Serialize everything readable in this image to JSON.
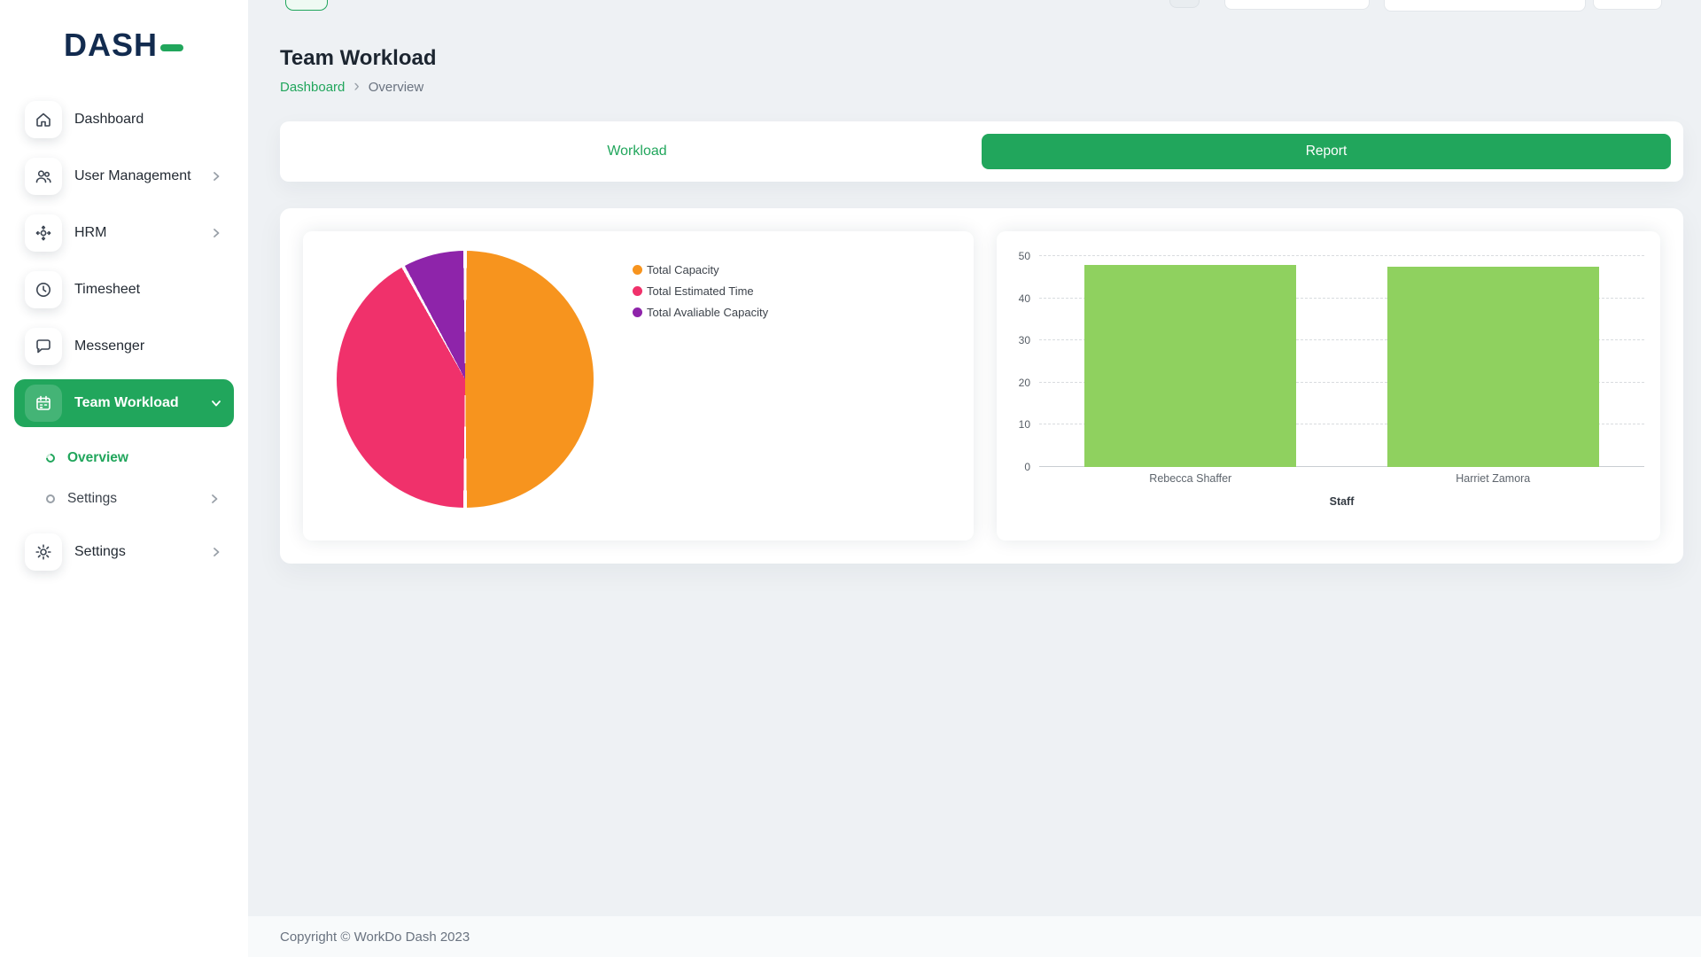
{
  "colors": {
    "primary_green": "#21A65C",
    "logo_navy": "#122B4F",
    "pie_orange": "#F7941E",
    "pie_pink": "#F0316B",
    "pie_purple": "#8E24AA",
    "bar_green": "#8FD15F"
  },
  "sidebar": {
    "logo": "DASH",
    "items": [
      {
        "label": "Dashboard"
      },
      {
        "label": "User Management"
      },
      {
        "label": "HRM"
      },
      {
        "label": "Timesheet"
      },
      {
        "label": "Messenger"
      },
      {
        "label": "Team Workload"
      },
      {
        "label": "Settings"
      }
    ],
    "team_workload_subitems": [
      {
        "label": "Overview"
      },
      {
        "label": "Settings"
      }
    ]
  },
  "header": {
    "title": "Team Workload",
    "breadcrumb_root": "Dashboard",
    "breadcrumb_current": "Overview"
  },
  "tabs": {
    "workload_label": "Workload",
    "report_label": "Report"
  },
  "chart_data": [
    {
      "type": "pie",
      "labels": [
        "Total Capacity",
        "Total Estimated Time",
        "Total Avaliable Capacity"
      ],
      "values_percent": [
        50,
        42,
        8
      ],
      "colors": [
        "#F7941E",
        "#F0316B",
        "#8E24AA"
      ],
      "legend_position": "right"
    },
    {
      "type": "bar",
      "categories": [
        "Rebecca Shaffer",
        "Harriet Zamora"
      ],
      "values": [
        48,
        47.5
      ],
      "xlabel": "Staff",
      "ylim": [
        0,
        50
      ],
      "yticks": [
        0,
        10,
        20,
        30,
        40,
        50
      ],
      "bar_color": "#8FD15F",
      "grid": "dashed-horizontal",
      "legend_position": "none"
    }
  ],
  "footer": {
    "copyright": "Copyright © WorkDo Dash 2023"
  }
}
